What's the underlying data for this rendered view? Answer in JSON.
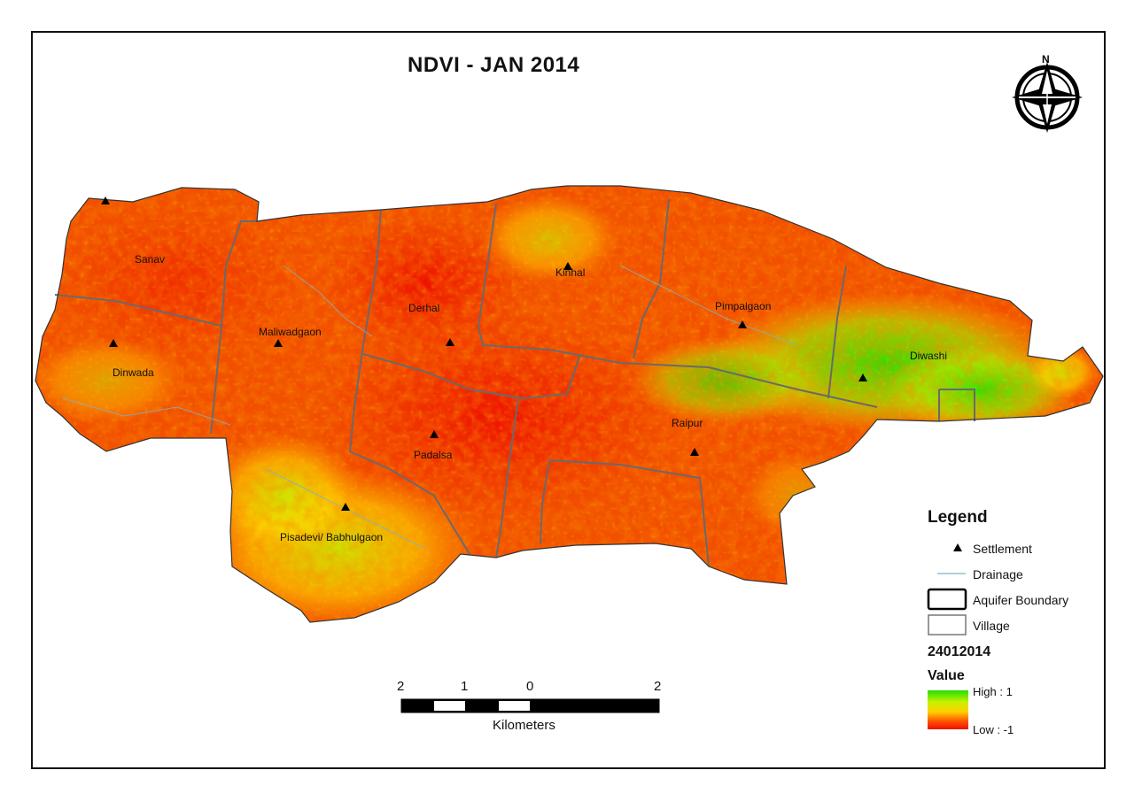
{
  "title": "NDVI - JAN 2014",
  "north_arrow": {
    "icon": "north-arrow-icon",
    "letter": "N"
  },
  "villages": [
    {
      "name": "Sanav"
    },
    {
      "name": "Maliwadgaon"
    },
    {
      "name": "Derhal"
    },
    {
      "name": "Kinhal"
    },
    {
      "name": "Pimpalgaon"
    },
    {
      "name": "Dinwada"
    },
    {
      "name": "Diwashi"
    },
    {
      "name": "Raipur"
    },
    {
      "name": "Padalsa"
    },
    {
      "name": "Pisadevi/ Babhulgaon"
    }
  ],
  "legend": {
    "title": "Legend",
    "settlement": "Settlement",
    "drainage": "Drainage",
    "aquifer_boundary": "Aquifer Boundary",
    "village": "Village",
    "raster_name": "24012014",
    "value_label": "Value",
    "high_label": "High : 1",
    "low_label": "Low : -1",
    "colors": {
      "high": "#22e000",
      "mid": "#ffd000",
      "low": "#f01000"
    }
  },
  "scale_bar": {
    "ticks": [
      "2",
      "1",
      "0",
      "2"
    ],
    "unit": "Kilometers"
  }
}
